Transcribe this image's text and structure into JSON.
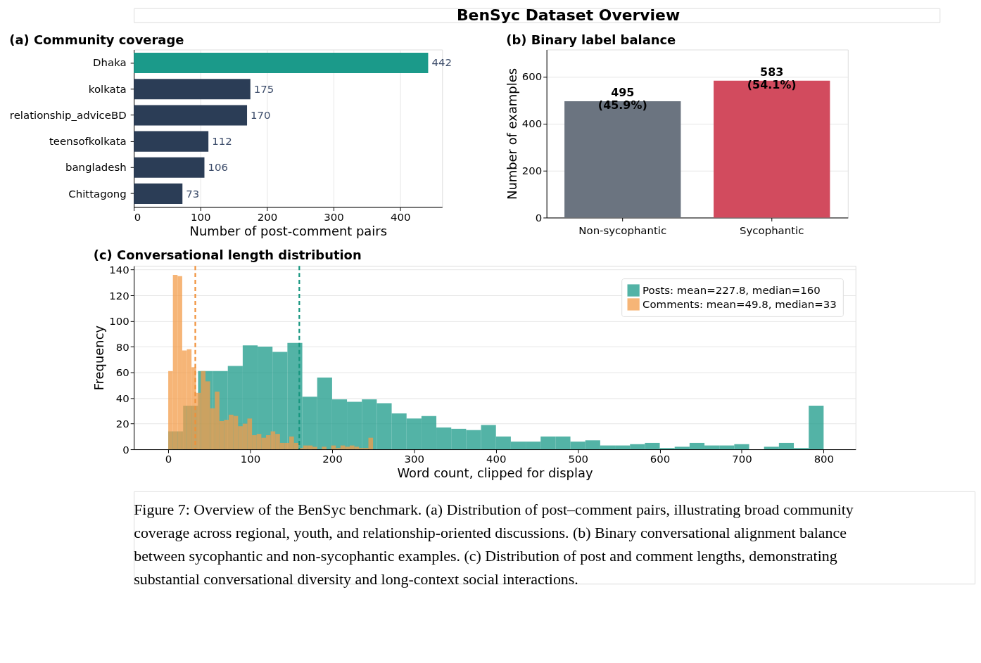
{
  "chart_data": [
    {
      "type": "bar",
      "orientation": "horizontal",
      "title": "(a) Community coverage",
      "xlabel": "Number of post-comment pairs",
      "categories": [
        "Dhaka",
        "kolkata",
        "relationship_adviceBD",
        "teensofkolkata",
        "bangladesh",
        "Chittagong"
      ],
      "values": [
        442,
        175,
        170,
        112,
        106,
        73
      ],
      "colors": [
        "#1b9a8a",
        "#2b3d56",
        "#2b3d56",
        "#2b3d56",
        "#2b3d56",
        "#2b3d56"
      ],
      "xlim": [
        0,
        463
      ],
      "xticks": [
        0,
        100,
        200,
        300,
        400
      ],
      "grid": "x",
      "data_labels": true,
      "annotations": [
        "BenSyc Dataset Overview"
      ]
    },
    {
      "type": "bar",
      "title": "(b) Binary label balance",
      "ylabel": "Number of examples",
      "categories": [
        "Non-sycophantic",
        "Sycophantic"
      ],
      "values": [
        495,
        583
      ],
      "colors": [
        "#6b7480",
        "#d24b5e"
      ],
      "ylim": [
        0,
        715
      ],
      "yticks": [
        0,
        200,
        400,
        600
      ],
      "grid": "y",
      "value_labels": [
        "495\n(45.9%)",
        "583\n(54.1%)"
      ]
    },
    {
      "type": "histogram",
      "title": "(c) Conversational length distribution",
      "xlabel": "Word count, clipped for display",
      "ylabel": "Frequency",
      "series": [
        {
          "name": "Posts: mean=227.8, median=160",
          "color": "#1a9988",
          "values": [
            14,
            34,
            61,
            61,
            65,
            81,
            80,
            76,
            83,
            41,
            56,
            39,
            37,
            39,
            36,
            28,
            24,
            26,
            17,
            16,
            15,
            19,
            10,
            6,
            6,
            10,
            10,
            6,
            7,
            3,
            3,
            4,
            5,
            1,
            2,
            5,
            3,
            3,
            4,
            0,
            2,
            5,
            1,
            34
          ]
        },
        {
          "name": "Comments: mean=49.8, median=33",
          "color": "#f39c4a",
          "bins": [
            0,
            5.68,
            11.36,
            17.05,
            22.73,
            28.41,
            34.09,
            39.77,
            45.45,
            51.14,
            56.82,
            62.5,
            68.18,
            73.86,
            79.55,
            85.23,
            90.91,
            96.59,
            102.27,
            107.95,
            113.64,
            119.32,
            125,
            130.68,
            136.36,
            142.05,
            147.73,
            153.41,
            159.09,
            164.77,
            170.45,
            176.14,
            181.82,
            187.5,
            193.18,
            198.86,
            204.55,
            210.23,
            215.91,
            221.59,
            227.27,
            232.95,
            238.64,
            244.32,
            250
          ],
          "values": [
            61,
            136,
            135,
            77,
            78,
            64,
            44,
            61,
            53,
            32,
            45,
            22,
            23,
            27,
            26,
            18,
            20,
            24,
            11,
            12,
            9,
            11,
            14,
            12,
            5,
            5,
            10,
            5,
            1,
            3,
            3,
            2,
            0,
            2,
            0,
            3,
            1,
            3,
            2,
            3,
            2,
            1,
            1,
            9
          ]
        }
      ],
      "bins": [
        0,
        18.18,
        36.36,
        54.55,
        72.73,
        90.91,
        109.09,
        127.27,
        145.45,
        163.64,
        181.82,
        200,
        218.18,
        236.36,
        254.55,
        272.73,
        290.91,
        309.09,
        327.27,
        345.45,
        363.64,
        381.82,
        400,
        418.18,
        436.36,
        454.55,
        472.73,
        490.91,
        509.09,
        527.27,
        545.45,
        563.64,
        581.82,
        600,
        618.18,
        636.36,
        654.55,
        672.73,
        690.91,
        709.09,
        727.27,
        745.45,
        763.64,
        781.82,
        800
      ],
      "ref_lines": [
        {
          "axis": "x",
          "value": 33,
          "color": "#f0913a",
          "line_style": "dashed"
        },
        {
          "axis": "x",
          "value": 160,
          "color": "#16967f",
          "line_style": "dashed"
        }
      ],
      "xlim": [
        -42,
        839
      ],
      "xticks": [
        0,
        100,
        200,
        300,
        400,
        500,
        600,
        700,
        800
      ],
      "ylim": [
        0,
        143
      ],
      "yticks": [
        0,
        20,
        40,
        60,
        80,
        100,
        120,
        140
      ],
      "grid": "y",
      "legend": "top right",
      "annotations": [
        "Figure 7: Overview of the BenSyc benchmark. (a) Distribution of post–comment pairs, illustrating broad community coverage across regional, youth, and relationship-oriented discussions. (b) Binary conversational alignment balance between sycophantic and non-sycophantic examples. (c) Distribution of post and comment lengths, demonstrating substantial conversational diversity and long-context social interactions."
      ]
    }
  ]
}
